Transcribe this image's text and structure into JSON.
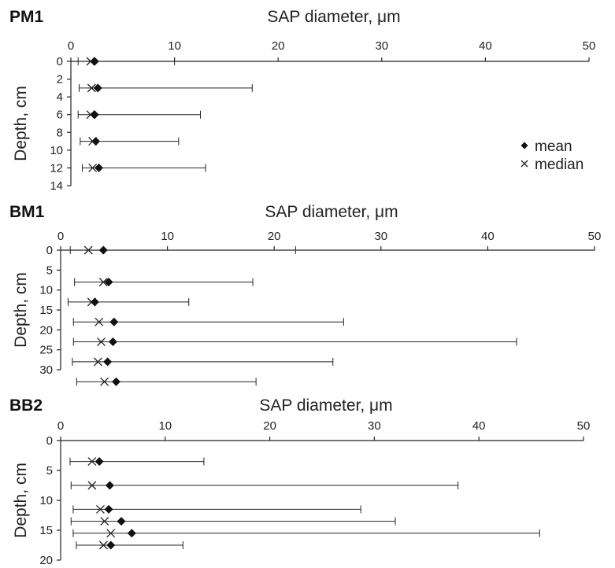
{
  "chart_data": [
    {
      "type": "scatter",
      "panel_label": "PM1",
      "xlabel": "SAP diameter, μm",
      "ylabel": "Depth, cm",
      "xlim": [
        0,
        50
      ],
      "ylim": [
        0,
        14
      ],
      "x_ticks": [
        0,
        10,
        20,
        30,
        40,
        50
      ],
      "y_ticks": [
        0,
        2,
        4,
        6,
        8,
        10,
        12,
        14
      ],
      "legend": {
        "placement": "right",
        "entries": [
          "mean",
          "median"
        ]
      },
      "grid": false,
      "points": [
        {
          "depth": 0,
          "mean": 2.3,
          "median": 1.9,
          "min": 0.7,
          "max": 10.0
        },
        {
          "depth": 3,
          "mean": 2.6,
          "median": 2.0,
          "min": 0.8,
          "max": 17.5
        },
        {
          "depth": 6,
          "mean": 2.3,
          "median": 1.9,
          "min": 0.7,
          "max": 12.5
        },
        {
          "depth": 9,
          "mean": 2.4,
          "median": 2.1,
          "min": 0.9,
          "max": 10.4
        },
        {
          "depth": 12,
          "mean": 2.7,
          "median": 2.1,
          "min": 1.1,
          "max": 13.0
        }
      ]
    },
    {
      "type": "scatter",
      "panel_label": "BM1",
      "xlabel": "SAP diameter, μm",
      "ylabel": "Depth, cm",
      "xlim": [
        0,
        50
      ],
      "ylim": [
        0,
        30
      ],
      "x_ticks": [
        0,
        10,
        20,
        30,
        40,
        50
      ],
      "y_ticks": [
        0,
        5,
        10,
        15,
        20,
        25,
        30
      ],
      "grid": false,
      "points": [
        {
          "depth": 0,
          "mean": 4.0,
          "median": 2.6,
          "min": 0.9,
          "max": 22.0
        },
        {
          "depth": 8,
          "mean": 4.5,
          "median": 4.0,
          "min": 1.3,
          "max": 18.0
        },
        {
          "depth": 13,
          "mean": 3.2,
          "median": 2.9,
          "min": 0.7,
          "max": 12.0
        },
        {
          "depth": 18,
          "mean": 5.0,
          "median": 3.6,
          "min": 1.2,
          "max": 26.5
        },
        {
          "depth": 23,
          "mean": 4.9,
          "median": 3.8,
          "min": 1.2,
          "max": 42.7
        },
        {
          "depth": 28,
          "mean": 4.4,
          "median": 3.5,
          "min": 1.1,
          "max": 25.5
        },
        {
          "depth": 33,
          "mean": 5.2,
          "median": 4.1,
          "min": 1.5,
          "max": 18.3
        }
      ]
    },
    {
      "type": "scatter",
      "panel_label": "BB2",
      "xlabel": "SAP diameter, μm",
      "ylabel": "Depth, cm",
      "xlim": [
        0,
        50
      ],
      "ylim": [
        0,
        20
      ],
      "x_ticks": [
        0,
        10,
        20,
        30,
        40,
        50
      ],
      "y_ticks": [
        0,
        5,
        10,
        15,
        20
      ],
      "grid": false,
      "points": [
        {
          "depth": 3.5,
          "mean": 3.7,
          "median": 3.0,
          "min": 0.9,
          "max": 13.7
        },
        {
          "depth": 7.5,
          "mean": 4.7,
          "median": 3.0,
          "min": 1.0,
          "max": 38.0
        },
        {
          "depth": 11.5,
          "mean": 4.6,
          "median": 3.8,
          "min": 1.2,
          "max": 28.7
        },
        {
          "depth": 13.5,
          "mean": 5.8,
          "median": 4.2,
          "min": 1.0,
          "max": 32.0
        },
        {
          "depth": 15.5,
          "mean": 6.8,
          "median": 4.8,
          "min": 1.2,
          "max": 45.8
        },
        {
          "depth": 17.5,
          "mean": 4.8,
          "median": 4.1,
          "min": 1.5,
          "max": 11.7
        }
      ]
    }
  ]
}
